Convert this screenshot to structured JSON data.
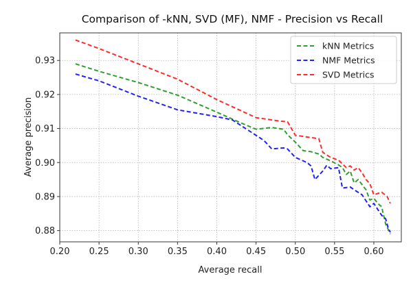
{
  "chart_data": {
    "type": "line",
    "title": "Comparison of -kNN, SVD (MF), NMF - Precision vs Recall",
    "xlabel": "Average recall",
    "ylabel": "Average precision",
    "xlim": [
      0.2,
      0.635
    ],
    "ylim": [
      0.8767,
      0.9381
    ],
    "xticks": [
      0.2,
      0.25,
      0.3,
      0.35,
      0.4,
      0.45,
      0.5,
      0.55,
      0.6
    ],
    "xtick_labels": [
      "0.20",
      "0.25",
      "0.30",
      "0.35",
      "0.40",
      "0.45",
      "0.50",
      "0.55",
      "0.60"
    ],
    "yticks": [
      0.88,
      0.89,
      0.9,
      0.91,
      0.92,
      0.93
    ],
    "ytick_labels": [
      "0.88",
      "0.89",
      "0.90",
      "0.91",
      "0.92",
      "0.93"
    ],
    "grid": true,
    "legend_position": "top-right",
    "series": [
      {
        "name": "kNN Metrics",
        "color": "#2ca02c",
        "style": "dashed",
        "points": [
          [
            0.22,
            0.929
          ],
          [
            0.25,
            0.9268
          ],
          [
            0.3,
            0.9235
          ],
          [
            0.35,
            0.9198
          ],
          [
            0.4,
            0.9148
          ],
          [
            0.43,
            0.9117
          ],
          [
            0.45,
            0.9098
          ],
          [
            0.47,
            0.9103
          ],
          [
            0.485,
            0.9098
          ],
          [
            0.49,
            0.9082
          ],
          [
            0.5,
            0.906
          ],
          [
            0.51,
            0.9035
          ],
          [
            0.52,
            0.9032
          ],
          [
            0.53,
            0.9025
          ],
          [
            0.535,
            0.9015
          ],
          [
            0.545,
            0.9005
          ],
          [
            0.555,
            0.8993
          ],
          [
            0.56,
            0.8985
          ],
          [
            0.565,
            0.8965
          ],
          [
            0.57,
            0.8975
          ],
          [
            0.575,
            0.894
          ],
          [
            0.58,
            0.895
          ],
          [
            0.585,
            0.8935
          ],
          [
            0.59,
            0.892
          ],
          [
            0.595,
            0.889
          ],
          [
            0.6,
            0.8895
          ],
          [
            0.605,
            0.888
          ],
          [
            0.61,
            0.887
          ],
          [
            0.615,
            0.882
          ],
          [
            0.621,
            0.879
          ]
        ]
      },
      {
        "name": "NMF Metrics",
        "color": "#1f1fff",
        "style": "dashed",
        "points": [
          [
            0.22,
            0.926
          ],
          [
            0.25,
            0.924
          ],
          [
            0.3,
            0.9195
          ],
          [
            0.35,
            0.9155
          ],
          [
            0.4,
            0.9135
          ],
          [
            0.42,
            0.9125
          ],
          [
            0.44,
            0.9095
          ],
          [
            0.46,
            0.9065
          ],
          [
            0.47,
            0.904
          ],
          [
            0.485,
            0.9043
          ],
          [
            0.49,
            0.904
          ],
          [
            0.5,
            0.9015
          ],
          [
            0.515,
            0.9
          ],
          [
            0.52,
            0.899
          ],
          [
            0.525,
            0.895
          ],
          [
            0.535,
            0.8975
          ],
          [
            0.54,
            0.8992
          ],
          [
            0.545,
            0.8982
          ],
          [
            0.555,
            0.8985
          ],
          [
            0.56,
            0.8925
          ],
          [
            0.57,
            0.8928
          ],
          [
            0.575,
            0.892
          ],
          [
            0.585,
            0.8905
          ],
          [
            0.595,
            0.887
          ],
          [
            0.6,
            0.888
          ],
          [
            0.61,
            0.8845
          ],
          [
            0.615,
            0.8835
          ],
          [
            0.618,
            0.881
          ],
          [
            0.621,
            0.8795
          ]
        ]
      },
      {
        "name": "SVD Metrics",
        "color": "#ff2a2a",
        "style": "dashed",
        "points": [
          [
            0.22,
            0.936
          ],
          [
            0.25,
            0.9335
          ],
          [
            0.3,
            0.929
          ],
          [
            0.35,
            0.9245
          ],
          [
            0.4,
            0.9185
          ],
          [
            0.45,
            0.9132
          ],
          [
            0.48,
            0.9122
          ],
          [
            0.49,
            0.912
          ],
          [
            0.5,
            0.908
          ],
          [
            0.515,
            0.9075
          ],
          [
            0.53,
            0.907
          ],
          [
            0.535,
            0.903
          ],
          [
            0.545,
            0.9015
          ],
          [
            0.555,
            0.9007
          ],
          [
            0.565,
            0.8985
          ],
          [
            0.57,
            0.899
          ],
          [
            0.575,
            0.8978
          ],
          [
            0.58,
            0.8985
          ],
          [
            0.585,
            0.897
          ],
          [
            0.59,
            0.895
          ],
          [
            0.595,
            0.8938
          ],
          [
            0.6,
            0.8905
          ],
          [
            0.61,
            0.8913
          ],
          [
            0.617,
            0.89
          ],
          [
            0.62,
            0.8885
          ],
          [
            0.621,
            0.888
          ]
        ]
      }
    ]
  }
}
